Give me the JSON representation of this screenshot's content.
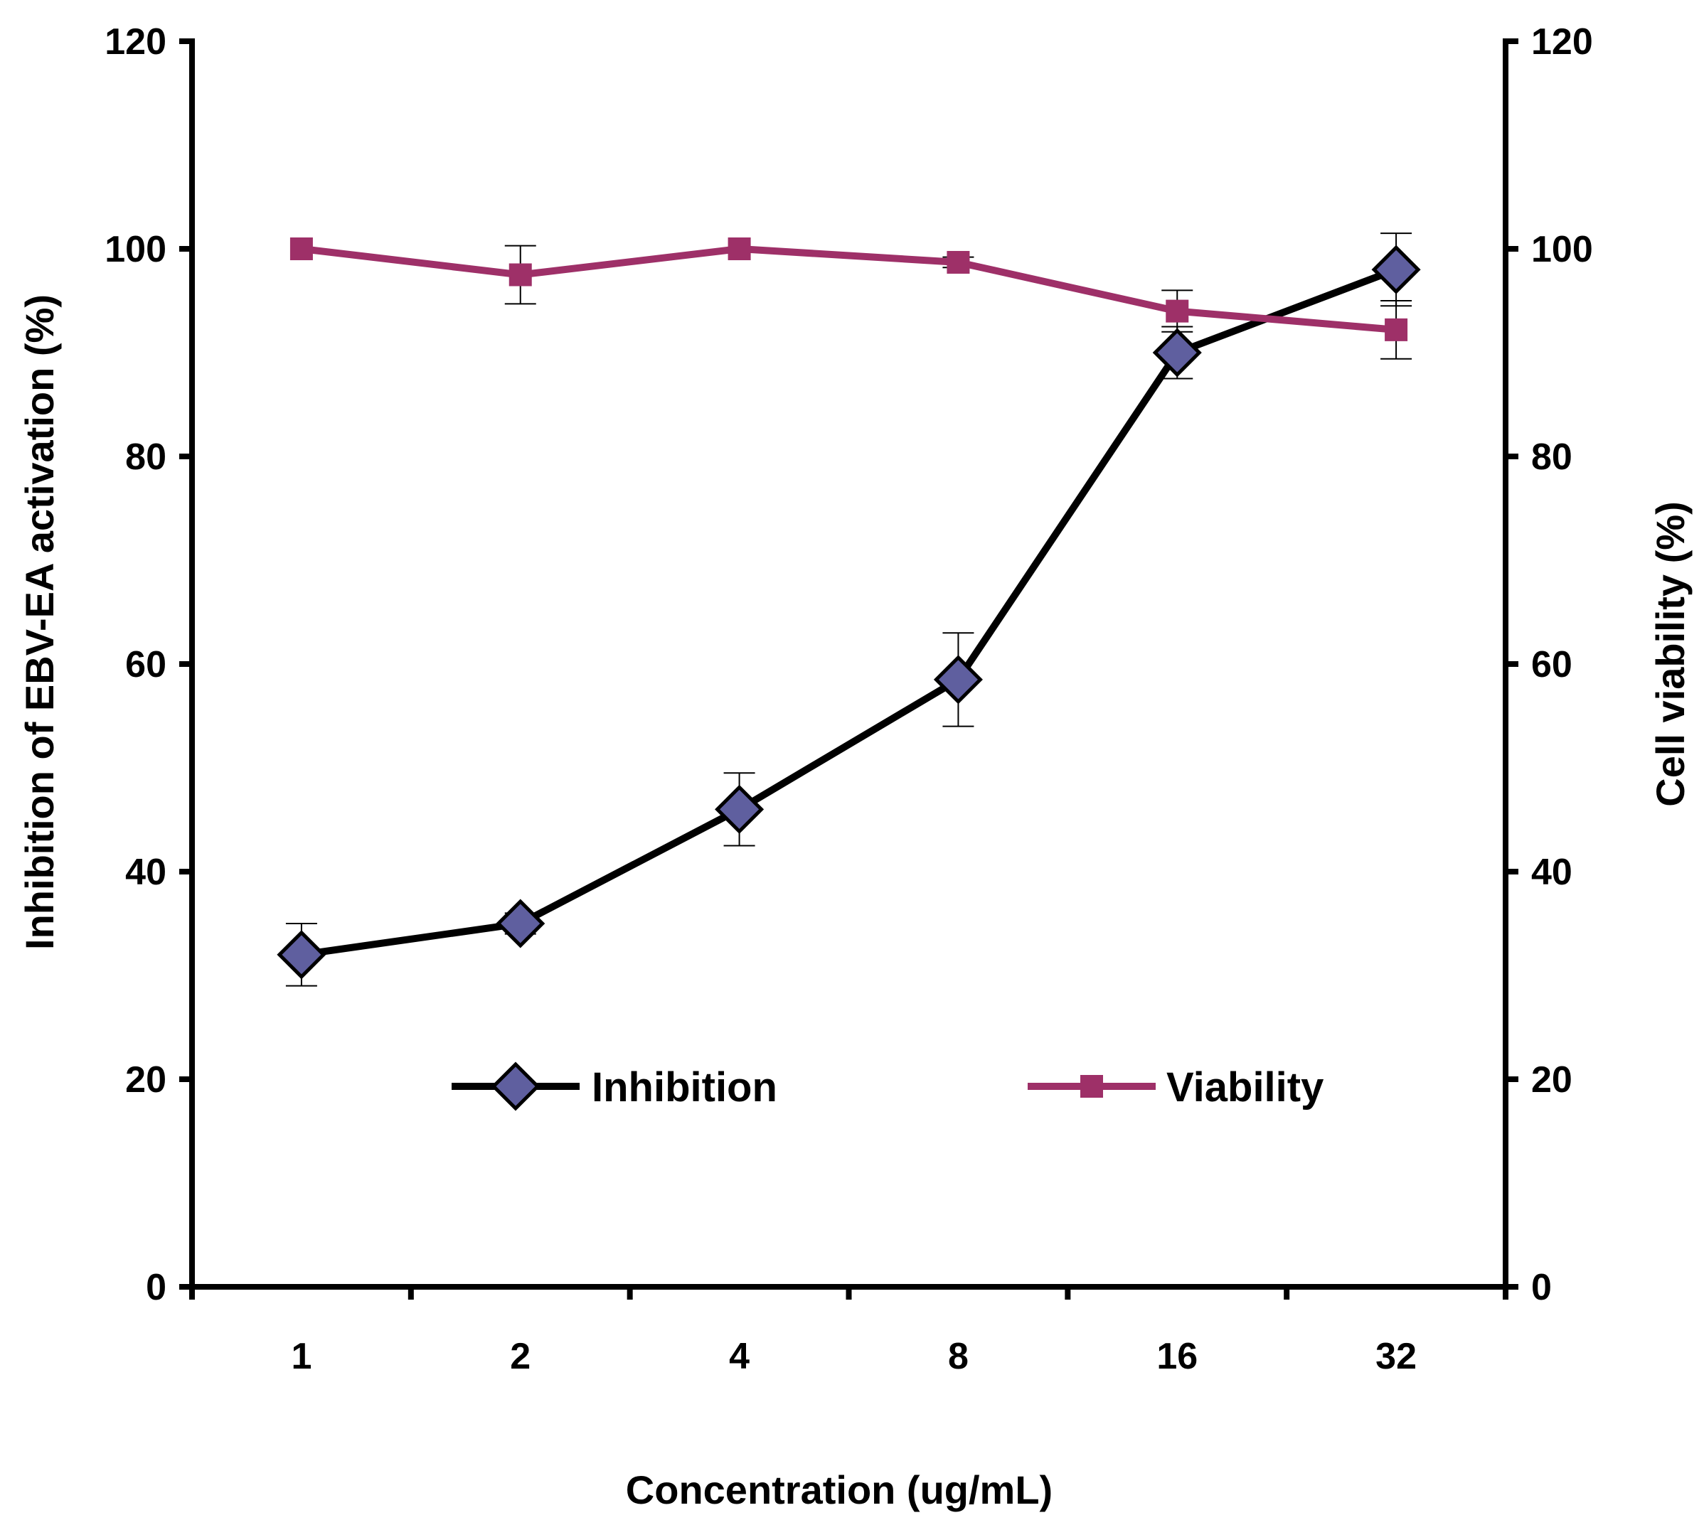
{
  "chart_data": {
    "type": "line",
    "title": "",
    "xlabel": "Concentration (ug/mL)",
    "ylabel": "Inhibition of EBV-EA activation (%)",
    "y2label": "Cell viability (%)",
    "categories": [
      "1",
      "2",
      "4",
      "8",
      "16",
      "32"
    ],
    "ylim": [
      0,
      120
    ],
    "y2lim": [
      0,
      120
    ],
    "yticks": [
      "0",
      "20",
      "40",
      "60",
      "80",
      "100",
      "120"
    ],
    "y2ticks": [
      "0",
      "20",
      "40",
      "60",
      "80",
      "100",
      "120"
    ],
    "grid": false,
    "legend_position": "inside-bottom-center",
    "series": [
      {
        "name": "Inhibition",
        "axis": "left",
        "marker": "diamond",
        "line_color": "#000000",
        "marker_color": "#5f5f9f",
        "values": [
          32,
          35,
          46,
          58.5,
          90,
          98
        ],
        "errors": [
          3,
          1,
          3.5,
          4.5,
          2.5,
          3.5
        ]
      },
      {
        "name": "Viability",
        "axis": "right",
        "marker": "square",
        "line_color": "#9e3068",
        "marker_color": "#9e3068",
        "values": [
          100,
          97.5,
          100,
          98.7,
          94,
          92.2
        ],
        "errors": [
          0,
          2.8,
          0,
          0.5,
          2,
          2.8
        ]
      }
    ]
  }
}
